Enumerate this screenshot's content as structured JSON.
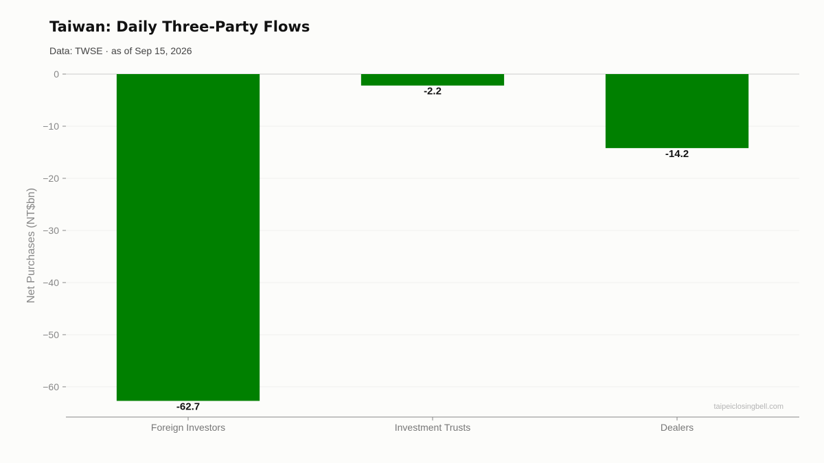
{
  "chart_data": {
    "type": "bar",
    "title": "Taiwan: Daily Three-Party Flows",
    "subtitle": "Data: TWSE · as of Sep 15, 2026",
    "categories": [
      "Foreign Investors",
      "Investment Trusts",
      "Dealers"
    ],
    "values": [
      -62.7,
      -2.2,
      -14.2
    ],
    "data_labels": [
      "-62.7",
      "-2.2",
      "-14.2"
    ],
    "xlabel": "",
    "ylabel": "Net Purchases (NT$bn)",
    "ylim": [
      -65.8,
      0
    ],
    "yticks": [
      0,
      -10,
      -20,
      -30,
      -40,
      -50,
      -60
    ],
    "ytick_labels": [
      "0",
      "−10",
      "−20",
      "−30",
      "−40",
      "−50",
      "−60"
    ],
    "grid": true,
    "watermark": "taipeiclosingbell.com",
    "colors": {
      "bar": "#008000",
      "zero_line": "#cccccc",
      "grid": "#efefef",
      "axis": "#888888"
    }
  }
}
